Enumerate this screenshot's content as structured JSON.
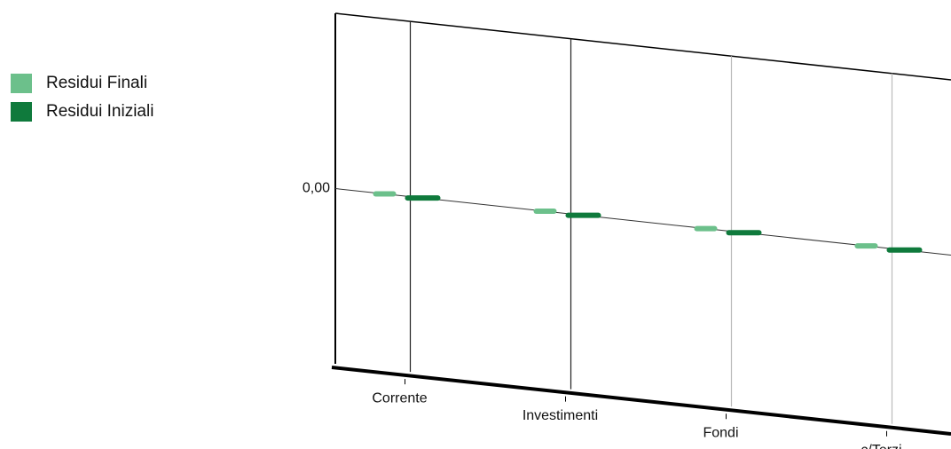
{
  "chart_data": {
    "type": "bar",
    "categories": [
      "Corrente",
      "Investimenti",
      "Fondi",
      "c/Terzi"
    ],
    "series": [
      {
        "name": "Residui Finali",
        "color": "#6cc08b",
        "values": [
          0,
          0,
          0,
          0
        ]
      },
      {
        "name": "Residui Iniziali",
        "color": "#0f7a3c",
        "values": [
          0,
          0,
          0,
          0
        ]
      }
    ],
    "ylim": [
      -1,
      1
    ],
    "yticks": [
      {
        "value": 0,
        "label": "0,00"
      }
    ],
    "grid": true
  }
}
